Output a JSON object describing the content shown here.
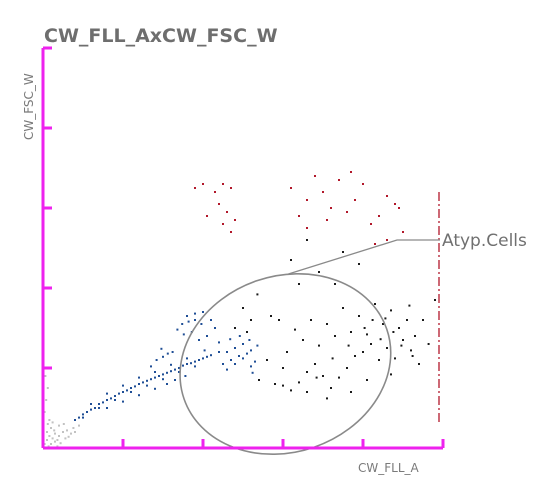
{
  "colors": {
    "axis": "#ee22ee",
    "gate": "#8a8a8a",
    "title": "#6e6e6e",
    "series_blue": "#1f4e96",
    "series_black": "#1a1a1a",
    "series_red": "#b2182b",
    "series_gray": "#c2c2c2"
  },
  "chart_data": {
    "type": "scatter",
    "title": "CW_FLL_AxCW_FSC_W",
    "xlabel": "CW_FLL_A",
    "ylabel": "CW_FSC_W",
    "xlim": [
      0,
      5
    ],
    "ylim": [
      0,
      5
    ],
    "x_ticks": [
      1,
      2,
      3,
      4,
      5
    ],
    "y_ticks": [
      1,
      2,
      3,
      4,
      5
    ],
    "grid": false,
    "threshold_line_x": 4.95,
    "annotations": [
      {
        "label": "Atyp.Cells",
        "gate_center": [
          3.03,
          1.05
        ],
        "gate_radii": [
          2.68,
          1.1
        ]
      }
    ],
    "series": [
      {
        "color": "blue",
        "points": [
          [
            0.4,
            0.35
          ],
          [
            0.45,
            0.38
          ],
          [
            0.5,
            0.42
          ],
          [
            0.55,
            0.45
          ],
          [
            0.6,
            0.48
          ],
          [
            0.65,
            0.5
          ],
          [
            0.7,
            0.55
          ],
          [
            0.75,
            0.57
          ],
          [
            0.8,
            0.6
          ],
          [
            0.85,
            0.62
          ],
          [
            0.9,
            0.65
          ],
          [
            0.95,
            0.68
          ],
          [
            1.0,
            0.7
          ],
          [
            1.05,
            0.72
          ],
          [
            1.1,
            0.75
          ],
          [
            1.15,
            0.77
          ],
          [
            1.2,
            0.8
          ],
          [
            1.25,
            0.82
          ],
          [
            1.3,
            0.84
          ],
          [
            1.35,
            0.86
          ],
          [
            1.4,
            0.88
          ],
          [
            1.45,
            0.9
          ],
          [
            1.5,
            0.92
          ],
          [
            1.55,
            0.94
          ],
          [
            1.6,
            0.96
          ],
          [
            1.65,
            0.98
          ],
          [
            1.7,
            1.0
          ],
          [
            1.75,
            1.03
          ],
          [
            1.8,
            1.05
          ],
          [
            1.85,
            1.06
          ],
          [
            1.9,
            1.08
          ],
          [
            1.95,
            1.1
          ],
          [
            2.0,
            1.12
          ],
          [
            2.05,
            1.14
          ],
          [
            2.1,
            1.16
          ],
          [
            0.5,
            0.38
          ],
          [
            0.7,
            0.5
          ],
          [
            0.9,
            0.6
          ],
          [
            1.1,
            0.7
          ],
          [
            1.3,
            0.78
          ],
          [
            1.5,
            0.86
          ],
          [
            1.7,
            0.95
          ],
          [
            1.9,
            1.02
          ],
          [
            0.6,
            0.55
          ],
          [
            0.8,
            0.68
          ],
          [
            1.0,
            0.78
          ],
          [
            1.2,
            0.88
          ],
          [
            1.4,
            0.95
          ],
          [
            1.6,
            1.04
          ],
          [
            1.8,
            1.12
          ],
          [
            1.35,
            1.02
          ],
          [
            1.42,
            1.1
          ],
          [
            1.5,
            1.14
          ],
          [
            1.56,
            1.18
          ],
          [
            1.62,
            1.2
          ],
          [
            1.48,
            1.24
          ],
          [
            1.4,
            0.74
          ],
          [
            1.2,
            0.66
          ],
          [
            1.0,
            0.58
          ],
          [
            0.8,
            0.5
          ],
          [
            1.55,
            0.8
          ],
          [
            1.65,
            0.85
          ],
          [
            1.78,
            0.9
          ],
          [
            1.74,
            1.55
          ],
          [
            1.82,
            1.58
          ],
          [
            1.9,
            1.6
          ],
          [
            1.98,
            1.55
          ],
          [
            1.86,
            1.45
          ],
          [
            1.95,
            1.35
          ],
          [
            2.05,
            1.4
          ],
          [
            2.02,
            1.22
          ],
          [
            2.15,
            1.5
          ],
          [
            2.2,
            1.2
          ],
          [
            2.25,
            1.05
          ],
          [
            2.3,
            0.98
          ],
          [
            2.35,
            1.1
          ],
          [
            2.4,
            1.25
          ],
          [
            2.45,
            1.15
          ],
          [
            2.5,
            1.3
          ],
          [
            2.55,
            1.18
          ],
          [
            2.6,
            1.02
          ],
          [
            2.65,
            1.08
          ],
          [
            2.3,
            1.2
          ],
          [
            2.4,
            1.05
          ],
          [
            2.5,
            1.12
          ],
          [
            2.6,
            1.22
          ],
          [
            2.62,
            0.94
          ],
          [
            2.2,
            1.32
          ],
          [
            2.34,
            1.36
          ],
          [
            2.46,
            1.4
          ],
          [
            2.58,
            1.35
          ],
          [
            2.68,
            1.28
          ],
          [
            1.68,
            1.48
          ],
          [
            1.76,
            1.42
          ],
          [
            2.1,
            1.6
          ],
          [
            2.0,
            1.7
          ],
          [
            1.9,
            1.68
          ],
          [
            1.8,
            1.65
          ]
        ]
      },
      {
        "color": "black",
        "points": [
          [
            2.7,
            0.85
          ],
          [
            2.9,
            0.8
          ],
          [
            3.0,
            0.78
          ],
          [
            3.1,
            0.72
          ],
          [
            3.2,
            0.82
          ],
          [
            3.3,
            0.95
          ],
          [
            3.4,
            1.05
          ],
          [
            3.5,
            0.9
          ],
          [
            3.6,
            0.75
          ],
          [
            3.7,
            0.88
          ],
          [
            3.8,
            1.0
          ],
          [
            3.9,
            1.15
          ],
          [
            4.0,
            1.2
          ],
          [
            4.1,
            1.3
          ],
          [
            4.2,
            1.1
          ],
          [
            4.3,
            1.25
          ],
          [
            4.4,
            1.12
          ],
          [
            4.5,
            1.35
          ],
          [
            4.6,
            1.22
          ],
          [
            4.7,
            1.05
          ],
          [
            2.8,
            1.1
          ],
          [
            3.05,
            1.2
          ],
          [
            3.25,
            1.35
          ],
          [
            3.45,
            1.28
          ],
          [
            3.65,
            1.4
          ],
          [
            3.85,
            1.45
          ],
          [
            4.05,
            1.42
          ],
          [
            4.25,
            1.55
          ],
          [
            4.45,
            1.5
          ],
          [
            4.65,
            1.4
          ],
          [
            3.15,
            1.48
          ],
          [
            3.35,
            1.6
          ],
          [
            3.55,
            1.55
          ],
          [
            3.75,
            1.75
          ],
          [
            3.95,
            1.65
          ],
          [
            4.15,
            1.8
          ],
          [
            4.35,
            1.72
          ],
          [
            4.55,
            1.6
          ],
          [
            2.55,
            1.45
          ],
          [
            2.95,
            1.6
          ],
          [
            3.0,
            1.0
          ],
          [
            3.3,
            0.7
          ],
          [
            3.55,
            0.62
          ],
          [
            3.85,
            0.7
          ],
          [
            4.05,
            0.85
          ],
          [
            4.35,
            0.92
          ],
          [
            4.75,
            1.6
          ],
          [
            4.9,
            1.85
          ],
          [
            3.45,
            2.2
          ],
          [
            3.65,
            2.05
          ],
          [
            2.6,
            1.6
          ],
          [
            2.4,
            1.5
          ],
          [
            2.5,
            1.75
          ],
          [
            2.85,
            1.65
          ],
          [
            3.1,
            2.35
          ],
          [
            3.3,
            2.6
          ],
          [
            3.2,
            2.05
          ],
          [
            3.75,
            2.45
          ],
          [
            3.95,
            2.3
          ],
          [
            4.12,
            1.6
          ],
          [
            4.22,
            1.36
          ],
          [
            4.38,
            1.45
          ],
          [
            4.48,
            1.28
          ],
          [
            4.62,
            1.15
          ],
          [
            4.82,
            1.3
          ],
          [
            2.68,
            1.92
          ],
          [
            3.42,
            0.88
          ],
          [
            3.62,
            1.12
          ],
          [
            3.82,
            1.28
          ],
          [
            4.02,
            1.5
          ],
          [
            4.28,
            1.62
          ],
          [
            4.58,
            1.78
          ]
        ]
      },
      {
        "color": "red",
        "points": [
          [
            1.9,
            3.25
          ],
          [
            2.0,
            3.3
          ],
          [
            2.15,
            3.2
          ],
          [
            2.25,
            3.3
          ],
          [
            2.35,
            3.25
          ],
          [
            2.2,
            3.05
          ],
          [
            2.3,
            2.95
          ],
          [
            2.4,
            2.85
          ],
          [
            2.05,
            2.9
          ],
          [
            2.25,
            2.8
          ],
          [
            2.35,
            2.7
          ],
          [
            3.1,
            3.25
          ],
          [
            3.3,
            3.1
          ],
          [
            3.5,
            3.2
          ],
          [
            3.6,
            3.0
          ],
          [
            3.8,
            2.95
          ],
          [
            3.9,
            3.1
          ],
          [
            4.0,
            3.3
          ],
          [
            4.1,
            2.8
          ],
          [
            4.2,
            2.9
          ],
          [
            4.3,
            2.6
          ],
          [
            4.4,
            3.05
          ],
          [
            4.5,
            2.7
          ],
          [
            3.4,
            3.4
          ],
          [
            3.85,
            3.45
          ],
          [
            4.3,
            3.15
          ],
          [
            3.2,
            2.9
          ],
          [
            3.3,
            2.75
          ],
          [
            3.7,
            3.35
          ],
          [
            4.15,
            2.55
          ],
          [
            4.45,
            3.0
          ],
          [
            3.55,
            2.85
          ]
        ]
      },
      {
        "color": "gray",
        "points": [
          [
            0.02,
            0.05
          ],
          [
            0.05,
            0.1
          ],
          [
            0.08,
            0.15
          ],
          [
            0.1,
            0.05
          ],
          [
            0.12,
            0.12
          ],
          [
            0.15,
            0.18
          ],
          [
            0.18,
            0.1
          ],
          [
            0.2,
            0.15
          ],
          [
            0.25,
            0.2
          ],
          [
            0.28,
            0.12
          ],
          [
            0.3,
            0.22
          ],
          [
            0.35,
            0.18
          ],
          [
            0.38,
            0.25
          ],
          [
            0.05,
            0.2
          ],
          [
            0.1,
            0.25
          ],
          [
            0.15,
            0.08
          ],
          [
            0.22,
            0.06
          ],
          [
            0.32,
            0.14
          ],
          [
            0.4,
            0.2
          ],
          [
            0.45,
            0.28
          ],
          [
            0.06,
            0.3
          ],
          [
            0.12,
            0.32
          ],
          [
            0.02,
            0.45
          ],
          [
            0.04,
            0.6
          ],
          [
            0.06,
            0.75
          ],
          [
            0.03,
            0.9
          ],
          [
            0.08,
            0.35
          ],
          [
            0.2,
            0.28
          ],
          [
            0.26,
            0.3
          ],
          [
            0.14,
            0.22
          ],
          [
            0.07,
            0.02
          ],
          [
            0.18,
            0.02
          ]
        ]
      }
    ]
  }
}
